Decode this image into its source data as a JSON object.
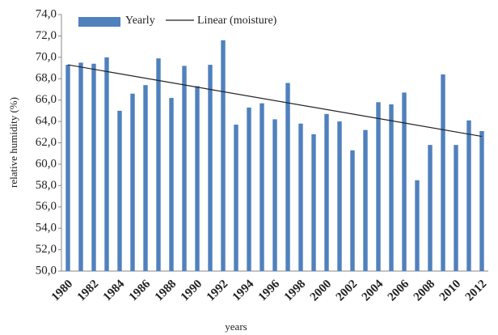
{
  "chart_data": {
    "type": "bar",
    "y_label": "relative humidity (%)",
    "x_label": "years",
    "categories": [
      "1980",
      null,
      "1982",
      null,
      "1984",
      null,
      "1986",
      null,
      "1988",
      null,
      "1990",
      null,
      "1992",
      null,
      "1994",
      null,
      "1996",
      null,
      "1998",
      null,
      "2000",
      null,
      "2002",
      null,
      "2004",
      null,
      "2006",
      null,
      "2008",
      null,
      "2010",
      null,
      "2012"
    ],
    "series": [
      {
        "name": "Yearly",
        "color": "#4f81bd",
        "values": [
          69.3,
          69.5,
          69.4,
          70.0,
          65.0,
          66.6,
          67.4,
          69.9,
          66.2,
          69.2,
          67.3,
          69.3,
          71.6,
          63.7,
          65.3,
          65.7,
          64.2,
          67.6,
          63.8,
          62.8,
          64.7,
          64.0,
          61.3,
          63.2,
          65.8,
          65.6,
          66.7,
          58.5,
          61.8,
          68.4,
          61.8,
          64.1,
          63.1
        ]
      }
    ],
    "trend": {
      "name": "Linear (moisture)",
      "color": "#222222",
      "values": [
        69.3,
        62.6
      ]
    },
    "ylim": [
      50,
      74
    ],
    "yticks": [
      {
        "value": 50,
        "label": "50,0"
      },
      {
        "value": 52,
        "label": "52,0"
      },
      {
        "value": 54,
        "label": "54,0"
      },
      {
        "value": 56,
        "label": "56,0"
      },
      {
        "value": 58,
        "label": "58,0"
      },
      {
        "value": 60,
        "label": "60,0"
      },
      {
        "value": 62,
        "label": "62,0"
      },
      {
        "value": 64,
        "label": "64,0"
      },
      {
        "value": 66,
        "label": "66,0"
      },
      {
        "value": 68,
        "label": "68,0"
      },
      {
        "value": 70,
        "label": "70,0"
      },
      {
        "value": 72,
        "label": "72,0"
      },
      {
        "value": 74,
        "label": "74,0"
      }
    ],
    "grid": false
  }
}
